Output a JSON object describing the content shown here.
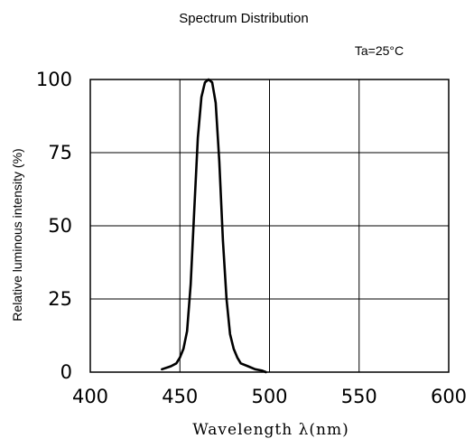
{
  "chart_data": {
    "type": "line",
    "title": "Spectrum Distribution",
    "condition": "Ta=25°C",
    "xlabel": "Wavelength λ(nm)",
    "ylabel": "Relative luminous intensity  (%)",
    "xlim": [
      400,
      600
    ],
    "ylim": [
      0,
      100
    ],
    "x_ticks": [
      400,
      450,
      500,
      550,
      600
    ],
    "y_ticks": [
      0,
      25,
      50,
      75,
      100
    ],
    "grid": true,
    "series": [
      {
        "x": [
          440,
          445,
          448,
          450,
          452,
          454,
          456,
          458,
          460,
          462,
          464,
          466,
          468,
          470,
          472,
          474,
          476,
          478,
          480,
          482,
          484,
          488,
          492,
          496,
          498
        ],
        "y": [
          1,
          2,
          3,
          5,
          8,
          14,
          30,
          55,
          80,
          94,
          99,
          100,
          99,
          92,
          72,
          45,
          25,
          13,
          8,
          5,
          3,
          2,
          1,
          0.5,
          0
        ]
      }
    ],
    "line_color": "#000000"
  }
}
